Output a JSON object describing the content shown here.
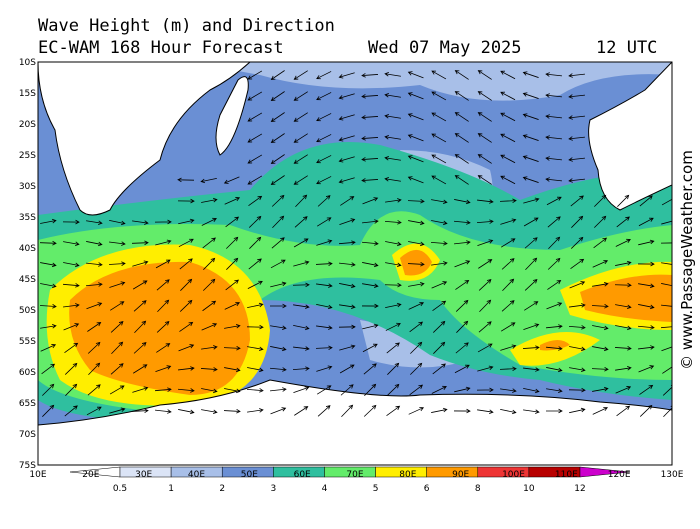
{
  "header": {
    "title": "Wave Height (m) and Direction",
    "model": "EC-WAM 168 Hour Forecast",
    "date": "Wed 07 May 2025",
    "time": "12 UTC"
  },
  "map": {
    "lat_labels": [
      "10S",
      "15S",
      "20S",
      "25S",
      "30S",
      "35S",
      "40S",
      "45S",
      "50S",
      "55S",
      "60S",
      "65S",
      "70S",
      "75S"
    ],
    "lon_labels": [
      "10E",
      "20E",
      "30E",
      "40E",
      "50E",
      "60E",
      "70E",
      "80E",
      "90E",
      "100E",
      "110E",
      "120E",
      "130E"
    ]
  },
  "colorbar": {
    "labels": [
      0.5,
      1,
      2,
      3,
      4,
      5,
      6,
      8,
      10,
      12
    ],
    "colors": [
      "#ffffff",
      "#dbe4f6",
      "#a8bfe8",
      "#6a8fd4",
      "#2fbf9f",
      "#63ec6a",
      "#ffee00",
      "#ff9a00",
      "#ee3434",
      "#b80000",
      "#cc00cc"
    ]
  },
  "watermark": "© www.PassageWeather.com"
}
